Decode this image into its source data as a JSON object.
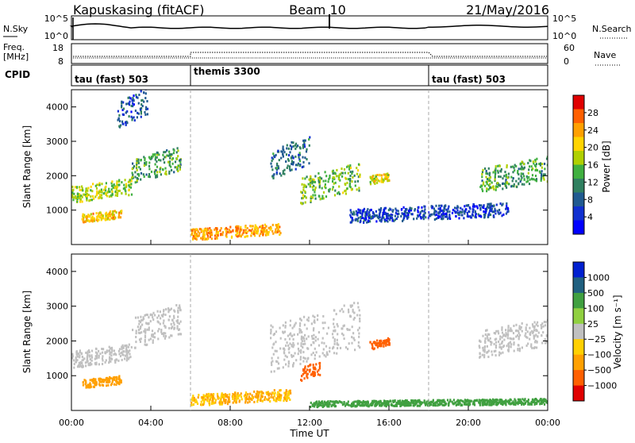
{
  "header": {
    "station": "Kapuskasing (fitACF)",
    "beam": "Beam 10",
    "date": "21/May/2016"
  },
  "sky_panel": {
    "left_label": "N.Sky",
    "right_label": "N.Search",
    "left_ticks": [
      "10^5",
      "10^0"
    ],
    "right_ticks": [
      "10^5",
      "10^0"
    ]
  },
  "freq_panel": {
    "left_label_line1": "Freq.",
    "left_label_line2": "[MHz]",
    "right_label": "Nave",
    "left_ticks": [
      "18",
      "8"
    ],
    "right_ticks": [
      "60",
      "0"
    ]
  },
  "cpid_panel": {
    "label": "CPID",
    "segments": [
      {
        "name": "tau (fast) 503",
        "start_hour": 0
      },
      {
        "name": "themis 3300",
        "start_hour": 6
      },
      {
        "name": "tau (fast) 503",
        "start_hour": 18
      }
    ]
  },
  "x_axis": {
    "label": "Time UT",
    "ticks": [
      "00:00",
      "04:00",
      "08:00",
      "12:00",
      "16:00",
      "20:00",
      "00:00"
    ]
  },
  "power_colorbar": {
    "label": "Power [dB]",
    "ticks": [
      "28",
      "24",
      "20",
      "16",
      "12",
      "8",
      "4"
    ],
    "colors": [
      "#e00000",
      "#ff6000",
      "#ffa000",
      "#ffd400",
      "#b0d000",
      "#40b040",
      "#308060",
      "#205a90",
      "#1030d0",
      "#0000ff"
    ]
  },
  "velocity_colorbar": {
    "label": "Velocity [m s⁻¹]",
    "ticks": [
      "1000",
      "500",
      "100",
      "25",
      "−25",
      "−100",
      "−500",
      "−1000"
    ],
    "colors": [
      "#0020d0",
      "#206080",
      "#40a040",
      "#90d040",
      "#c0c0c0",
      "#ffd000",
      "#ffa000",
      "#ff6000",
      "#e00000"
    ]
  },
  "chart_data": [
    {
      "type": "heatmap",
      "title": "Power",
      "xlabel": "",
      "ylabel": "Slant Range [km]",
      "xlim": [
        0,
        24
      ],
      "ylim": [
        0,
        4500
      ],
      "y_ticks": [
        1000,
        2000,
        3000,
        4000
      ],
      "colorbar_range_db": [
        0,
        30
      ],
      "features": [
        {
          "t0": 0.0,
          "t1": 3.0,
          "r0": 1300,
          "r1": 1900,
          "power_db": 18
        },
        {
          "t0": 3.0,
          "t1": 5.5,
          "r0": 1900,
          "r1": 2800,
          "power_db": 14
        },
        {
          "t0": 0.5,
          "t1": 2.5,
          "r0": 700,
          "r1": 1000,
          "power_db": 22
        },
        {
          "t0": 2.3,
          "t1": 3.8,
          "r0": 3500,
          "r1": 4500,
          "power_db": 8
        },
        {
          "t0": 6.0,
          "t1": 10.5,
          "r0": 200,
          "r1": 600,
          "power_db": 24
        },
        {
          "t0": 10.0,
          "t1": 12.0,
          "r0": 2000,
          "r1": 3100,
          "power_db": 10
        },
        {
          "t0": 11.5,
          "t1": 14.5,
          "r0": 1300,
          "r1": 2300,
          "power_db": 16
        },
        {
          "t0": 14.0,
          "t1": 22.0,
          "r0": 700,
          "r1": 1200,
          "power_db": 7
        },
        {
          "t0": 15.0,
          "t1": 16.0,
          "r0": 1800,
          "r1": 2100,
          "power_db": 20
        },
        {
          "t0": 20.5,
          "t1": 24.0,
          "r0": 1600,
          "r1": 2500,
          "power_db": 14
        }
      ]
    },
    {
      "type": "heatmap",
      "title": "Velocity",
      "xlabel": "Time UT",
      "ylabel": "Slant Range [km]",
      "xlim": [
        0,
        24
      ],
      "ylim": [
        0,
        4500
      ],
      "y_ticks": [
        1000,
        2000,
        3000,
        4000
      ],
      "features": [
        {
          "t0": 0.0,
          "t1": 3.0,
          "r0": 1300,
          "r1": 1900,
          "velocity_ms": 0
        },
        {
          "t0": 3.0,
          "t1": 5.5,
          "r0": 1900,
          "r1": 3000,
          "velocity_ms": 0
        },
        {
          "t0": 0.5,
          "t1": 2.5,
          "r0": 700,
          "r1": 1000,
          "velocity_ms": -150
        },
        {
          "t0": 6.0,
          "t1": 11.0,
          "r0": 200,
          "r1": 600,
          "velocity_ms": -100
        },
        {
          "t0": 11.5,
          "t1": 12.5,
          "r0": 900,
          "r1": 1400,
          "velocity_ms": -500
        },
        {
          "t0": 15.0,
          "t1": 16.0,
          "r0": 1800,
          "r1": 2100,
          "velocity_ms": -500
        },
        {
          "t0": 10.0,
          "t1": 14.5,
          "r0": 1300,
          "r1": 3000,
          "velocity_ms": 0
        },
        {
          "t0": 12.0,
          "t1": 24.0,
          "r0": 150,
          "r1": 350,
          "velocity_ms": 100
        },
        {
          "t0": 20.5,
          "t1": 24.0,
          "r0": 1600,
          "r1": 2600,
          "velocity_ms": 0
        }
      ]
    }
  ]
}
